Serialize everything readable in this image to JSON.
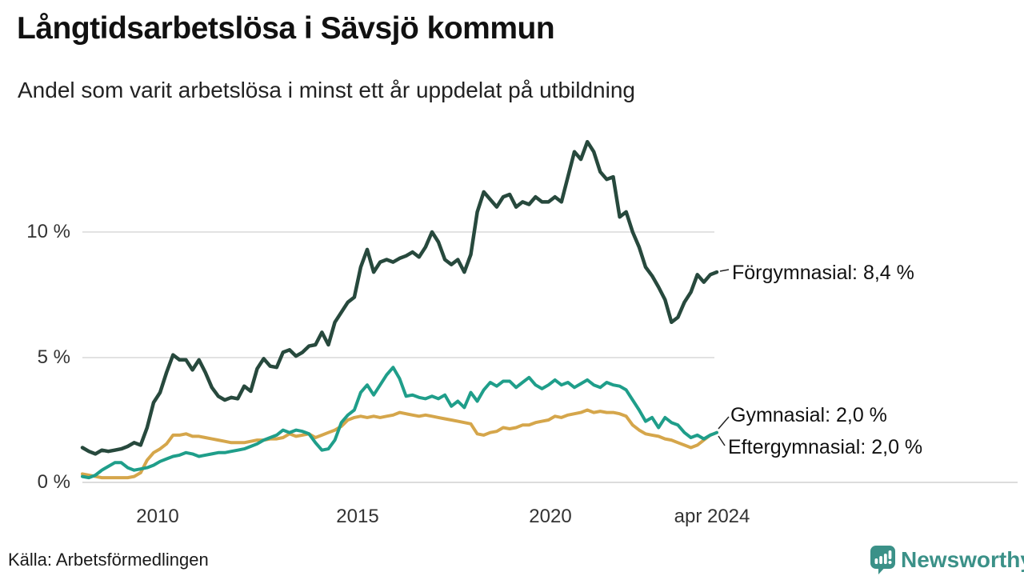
{
  "header": {
    "title": "Långtidsarbetslösa i Sävsjö kommun",
    "subtitle": "Andel som varit arbetslösa i minst ett år uppdelat på utbildning"
  },
  "source": {
    "label": "Källa: Arbetsförmedlingen"
  },
  "branding": {
    "name": "Newsworthy",
    "icon": "bar-chart-pin-icon",
    "color": "#3b9188"
  },
  "chart_data": {
    "type": "line",
    "title": "Långtidsarbetslösa i Sävsjö kommun",
    "subtitle": "Andel som varit arbetslösa i minst ett år uppdelat på utbildning",
    "grid": "horizontal-only",
    "legend_position": "right-end-labels",
    "x_axis": {
      "ticks": [
        "2010",
        "2015",
        "2020",
        "apr 2024"
      ],
      "start_year": 2008,
      "step_months": 2,
      "end": "apr 2024"
    },
    "y_axis": {
      "unit": "%",
      "ticks": [
        "10 %",
        "5 %",
        "0 %"
      ],
      "gridline_values": [
        10,
        5,
        0
      ],
      "ylim": [
        0,
        14.5
      ]
    },
    "series": [
      {
        "name": "Förgymnasial",
        "end_label": "Förgymnasial: 8,4 %",
        "end_value": 8.4,
        "color": "#27493d",
        "values": [
          1.4,
          1.25,
          1.15,
          1.3,
          1.25,
          1.3,
          1.35,
          1.45,
          1.6,
          1.5,
          2.2,
          3.2,
          3.6,
          4.4,
          5.1,
          4.9,
          4.9,
          4.5,
          4.9,
          4.4,
          3.8,
          3.45,
          3.3,
          3.4,
          3.35,
          3.85,
          3.65,
          4.55,
          4.95,
          4.65,
          4.6,
          5.2,
          5.3,
          5.05,
          5.2,
          5.45,
          5.5,
          6.0,
          5.5,
          6.4,
          6.8,
          7.2,
          7.4,
          8.6,
          9.3,
          8.4,
          8.8,
          8.9,
          8.8,
          8.95,
          9.05,
          9.2,
          9.0,
          9.4,
          10.0,
          9.6,
          8.9,
          8.7,
          8.9,
          8.4,
          9.1,
          10.8,
          11.6,
          11.3,
          11.0,
          11.4,
          11.5,
          11.0,
          11.2,
          11.1,
          11.4,
          11.2,
          11.2,
          11.4,
          11.2,
          12.2,
          13.2,
          12.9,
          13.6,
          13.2,
          12.4,
          12.1,
          12.2,
          10.6,
          10.8,
          10.0,
          9.4,
          8.6,
          8.25,
          7.8,
          7.3,
          6.4,
          6.6,
          7.2,
          7.6,
          8.3,
          8.0,
          8.3,
          8.4
        ]
      },
      {
        "name": "Gymnasial",
        "end_label": "Gymnasial: 2,0 %",
        "end_value": 2.0,
        "color": "#1f9e8a",
        "values": [
          0.25,
          0.2,
          0.3,
          0.5,
          0.65,
          0.8,
          0.8,
          0.6,
          0.5,
          0.55,
          0.6,
          0.7,
          0.85,
          0.95,
          1.05,
          1.1,
          1.2,
          1.15,
          1.05,
          1.1,
          1.15,
          1.2,
          1.2,
          1.25,
          1.3,
          1.35,
          1.45,
          1.55,
          1.7,
          1.8,
          1.9,
          2.1,
          2.0,
          2.1,
          2.05,
          1.95,
          1.6,
          1.3,
          1.35,
          1.7,
          2.4,
          2.7,
          2.9,
          3.6,
          3.9,
          3.5,
          3.9,
          4.3,
          4.6,
          4.15,
          3.45,
          3.5,
          3.4,
          3.35,
          3.45,
          3.35,
          3.5,
          3.05,
          3.25,
          3.0,
          3.6,
          3.25,
          3.7,
          4.0,
          3.85,
          4.05,
          4.05,
          3.8,
          4.0,
          4.2,
          3.9,
          3.75,
          3.9,
          4.1,
          3.9,
          4.0,
          3.8,
          3.95,
          4.1,
          3.9,
          3.8,
          4.0,
          3.9,
          3.85,
          3.7,
          3.3,
          2.9,
          2.45,
          2.6,
          2.2,
          2.6,
          2.4,
          2.3,
          2.0,
          1.8,
          1.9,
          1.75,
          1.9,
          2.0
        ]
      },
      {
        "name": "Eftergymnasial",
        "end_label": "Eftergymnasial: 2,0 %",
        "end_value": 2.0,
        "color": "#d5a64b",
        "values": [
          0.35,
          0.3,
          0.25,
          0.2,
          0.2,
          0.2,
          0.2,
          0.2,
          0.25,
          0.4,
          0.9,
          1.2,
          1.35,
          1.55,
          1.9,
          1.9,
          1.95,
          1.85,
          1.85,
          1.8,
          1.75,
          1.7,
          1.65,
          1.6,
          1.6,
          1.6,
          1.65,
          1.7,
          1.7,
          1.75,
          1.75,
          1.8,
          1.95,
          1.85,
          1.9,
          1.95,
          1.8,
          1.9,
          2.0,
          2.1,
          2.25,
          2.5,
          2.6,
          2.65,
          2.6,
          2.65,
          2.6,
          2.65,
          2.7,
          2.8,
          2.75,
          2.7,
          2.65,
          2.7,
          2.65,
          2.6,
          2.55,
          2.5,
          2.45,
          2.4,
          2.35,
          1.95,
          1.9,
          2.0,
          2.05,
          2.2,
          2.15,
          2.2,
          2.3,
          2.3,
          2.4,
          2.45,
          2.5,
          2.65,
          2.6,
          2.7,
          2.75,
          2.8,
          2.9,
          2.8,
          2.85,
          2.8,
          2.8,
          2.75,
          2.65,
          2.3,
          2.1,
          1.95,
          1.9,
          1.85,
          1.75,
          1.7,
          1.6,
          1.5,
          1.4,
          1.5,
          1.7,
          1.9,
          2.0
        ]
      }
    ]
  }
}
